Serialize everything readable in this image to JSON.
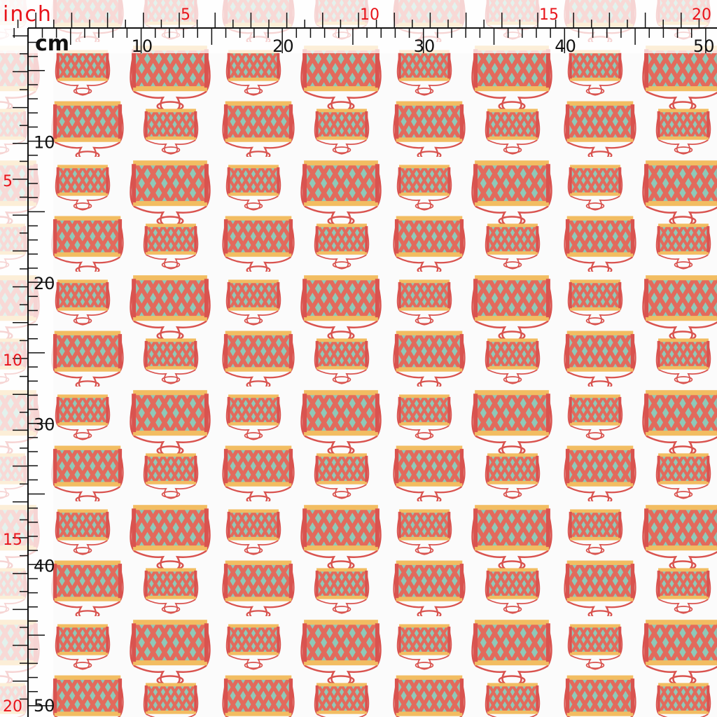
{
  "rulers": {
    "top": {
      "unit_inch": "inch",
      "unit_cm": "cm",
      "inch": [
        5,
        10,
        15,
        20
      ],
      "cm": [
        10,
        20,
        30,
        40,
        50
      ]
    },
    "left": {
      "inch": [
        5,
        10,
        15,
        20
      ],
      "cm": [
        10,
        20,
        30,
        40,
        50
      ]
    }
  }
}
